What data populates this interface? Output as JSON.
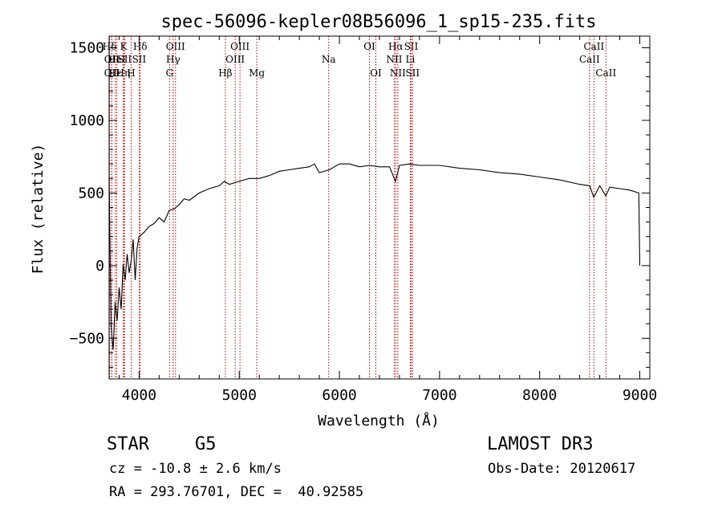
{
  "chart_data": {
    "type": "line",
    "title": "spec-56096-kepler08B56096_1_sp15-235.fits",
    "xlabel": "Wavelength (Å)",
    "ylabel": "Flux (relative)",
    "xlim": [
      3700,
      9100
    ],
    "ylim": [
      -780,
      1580
    ],
    "xticks": [
      4000,
      5000,
      6000,
      7000,
      8000,
      9000
    ],
    "yticks": [
      -500,
      0,
      500,
      1000,
      1500
    ],
    "spectrum": {
      "name": "flux",
      "x": [
        3700,
        3720,
        3740,
        3760,
        3780,
        3800,
        3820,
        3840,
        3860,
        3880,
        3900,
        3920,
        3940,
        3960,
        3980,
        4000,
        4050,
        4100,
        4150,
        4200,
        4250,
        4300,
        4350,
        4400,
        4450,
        4500,
        4600,
        4700,
        4800,
        4850,
        4900,
        5000,
        5100,
        5200,
        5300,
        5400,
        5500,
        5600,
        5700,
        5750,
        5800,
        5900,
        5950,
        6000,
        6100,
        6200,
        6300,
        6400,
        6500,
        6560,
        6600,
        6700,
        6800,
        7000,
        7200,
        7400,
        7600,
        7800,
        8000,
        8200,
        8400,
        8500,
        8540,
        8600,
        8660,
        8700,
        8800,
        8900,
        8990,
        9000
      ],
      "y": [
        600,
        -420,
        -580,
        -250,
        -380,
        -150,
        -300,
        10,
        -100,
        80,
        -50,
        30,
        180,
        -100,
        120,
        200,
        230,
        270,
        290,
        330,
        300,
        380,
        390,
        420,
        460,
        450,
        500,
        530,
        550,
        580,
        560,
        580,
        600,
        600,
        620,
        650,
        660,
        670,
        680,
        700,
        640,
        660,
        680,
        700,
        700,
        680,
        690,
        680,
        680,
        580,
        690,
        700,
        690,
        690,
        670,
        660,
        640,
        630,
        610,
        590,
        560,
        550,
        470,
        550,
        480,
        540,
        530,
        520,
        500,
        0
      ]
    },
    "spectral_lines": [
      {
        "label": "Hδ",
        "wavelength": 3705,
        "row": 1
      },
      {
        "label": "OII",
        "wavelength": 3727,
        "row": 2
      },
      {
        "label": "OII",
        "wavelength": 3727,
        "row": 3
      },
      {
        "label": "Hε",
        "wavelength": 3762,
        "row": 3
      },
      {
        "label": "HeI",
        "wavelength": 3777,
        "row": 2
      },
      {
        "label": "K",
        "wavelength": 3845,
        "row": 1
      },
      {
        "label": "SII",
        "wavelength": 3855,
        "row": 2
      },
      {
        "label": "Hη",
        "wavelength": 3840,
        "row": 3
      },
      {
        "label": "H",
        "wavelength": 3920,
        "row": 3
      },
      {
        "label": "Hδ",
        "wavelength": 4010,
        "row": 1
      },
      {
        "label": "SII",
        "wavelength": 4000,
        "row": 2
      },
      {
        "label": "OIII",
        "wavelength": 4363,
        "row": 1
      },
      {
        "label": "Hγ",
        "wavelength": 4340,
        "row": 2
      },
      {
        "label": "G",
        "wavelength": 4304,
        "row": 3
      },
      {
        "label": "Hβ",
        "wavelength": 4861,
        "row": 3
      },
      {
        "label": "OIII",
        "wavelength": 5007,
        "row": 1
      },
      {
        "label": "OIII",
        "wavelength": 4959,
        "row": 2
      },
      {
        "label": "Mg",
        "wavelength": 5175,
        "row": 3
      },
      {
        "label": "Na",
        "wavelength": 5893,
        "row": 2
      },
      {
        "label": "OI",
        "wavelength": 6300,
        "row": 1
      },
      {
        "label": "OI",
        "wavelength": 6364,
        "row": 3
      },
      {
        "label": "Hα",
        "wavelength": 6563,
        "row": 1
      },
      {
        "label": "NII",
        "wavelength": 6548,
        "row": 2
      },
      {
        "label": "NII",
        "wavelength": 6583,
        "row": 3
      },
      {
        "label": "SII",
        "wavelength": 6717,
        "row": 1
      },
      {
        "label": "Li",
        "wavelength": 6708,
        "row": 2
      },
      {
        "label": "SII",
        "wavelength": 6731,
        "row": 3
      },
      {
        "label": "CaII",
        "wavelength": 8542,
        "row": 1
      },
      {
        "label": "CaII",
        "wavelength": 8498,
        "row": 2
      },
      {
        "label": "CaII",
        "wavelength": 8662,
        "row": 3
      }
    ]
  },
  "info": {
    "object_class": "STAR",
    "subclass": "G5",
    "survey": "LAMOST DR3",
    "redshift": "cz = -10.8 ± 2.6 km/s",
    "obs_date": "Obs-Date: 20120617",
    "coords": "RA = 293.76701, DEC =  40.92585"
  }
}
